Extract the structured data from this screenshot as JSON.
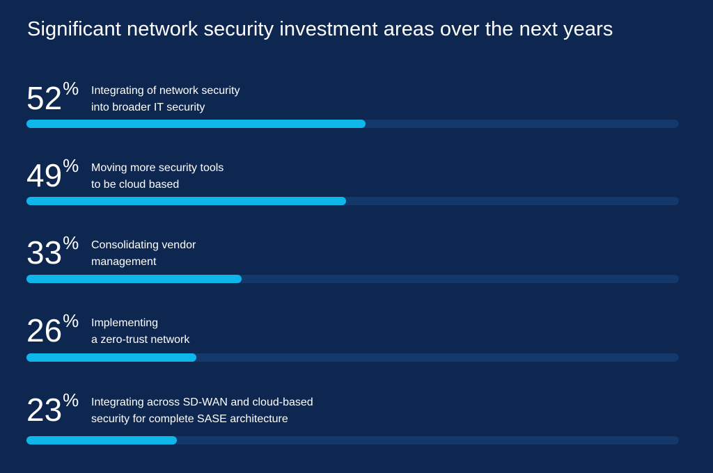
{
  "title": "Significant network security investment areas over the next years",
  "colors": {
    "background": "#0e2750",
    "track": "#15386a",
    "fill": "#0fb6ea",
    "text": "#ffffff"
  },
  "percent_sign": "%",
  "chart_data": {
    "type": "bar",
    "orientation": "horizontal",
    "title": "Significant network security investment areas over the next years",
    "xlim": [
      0,
      100
    ],
    "unit": "%",
    "categories": [
      "Integrating of network security into broader IT security",
      "Moving more security tools to be cloud based",
      "Consolidating vendor management",
      "Implementing a zero-trust network",
      "Integrating across SD-WAN and cloud-based security for complete SASE architecture"
    ],
    "values": [
      52,
      49,
      33,
      26,
      23
    ]
  },
  "rows": [
    {
      "value": 52,
      "value_text": "52",
      "label_lines": [
        "Integrating of network security",
        "into broader IT security"
      ]
    },
    {
      "value": 49,
      "value_text": "49",
      "label_lines": [
        "Moving more security tools",
        "to be cloud based"
      ]
    },
    {
      "value": 33,
      "value_text": "33",
      "label_lines": [
        "Consolidating vendor",
        "management"
      ]
    },
    {
      "value": 26,
      "value_text": "26",
      "label_lines": [
        "Implementing",
        "a zero-trust network"
      ]
    },
    {
      "value": 23,
      "value_text": "23",
      "label_lines": [
        "Integrating across SD-WAN and cloud-based",
        "security for complete SASE architecture"
      ]
    }
  ]
}
